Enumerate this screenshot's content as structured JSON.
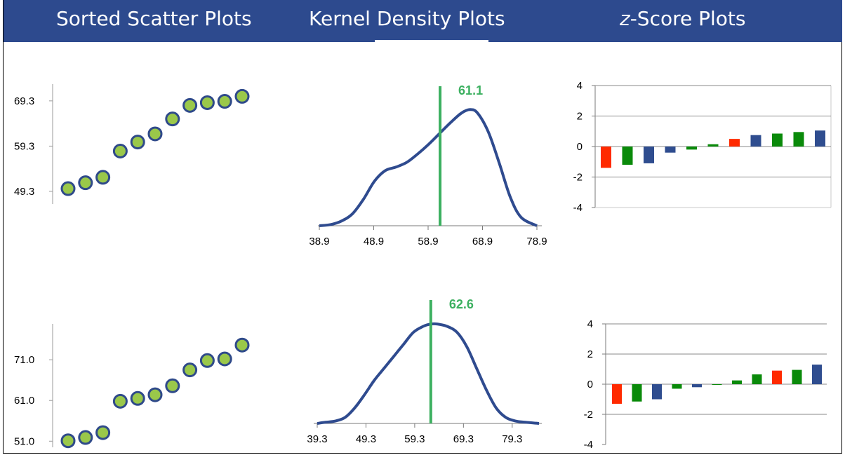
{
  "headers": {
    "scatter": "Sorted Scatter Plots",
    "kde": "Kernel Density Plots",
    "zscore_prefix": "z",
    "zscore_rest": "-Score Plots"
  },
  "colors": {
    "header_bg": "#2d4a8e",
    "dot_fill": "#9ac84a",
    "dot_stroke": "#2f4a8a",
    "kde_line": "#2f4b8f",
    "mean_line": "#3cb060",
    "bar_red": "#ff2a00",
    "bar_green": "#0a8a0a",
    "bar_blue": "#2f4d8f"
  },
  "chart_data": [
    {
      "type": "scatter",
      "panel": "sorted-scatter-top",
      "x": [
        1,
        2,
        3,
        4,
        5,
        6,
        7,
        8,
        9,
        10,
        11
      ],
      "y": [
        49.9,
        51.2,
        52.4,
        58.2,
        60.2,
        62.0,
        65.3,
        68.3,
        68.9,
        69.2,
        70.3
      ],
      "ytick_labels": [
        "49.3",
        "59.3",
        "69.3"
      ],
      "yticks": [
        49.3,
        59.3,
        69.3
      ],
      "ylim": [
        46.5,
        73.0
      ]
    },
    {
      "type": "line",
      "panel": "kde-top",
      "x": [
        38.9,
        41,
        43,
        45,
        47,
        49,
        51,
        53,
        55,
        57,
        59,
        61,
        63,
        65,
        66.6,
        68,
        70,
        72,
        74,
        76,
        78.9
      ],
      "y": [
        0.0,
        0.01,
        0.04,
        0.1,
        0.22,
        0.37,
        0.46,
        0.49,
        0.53,
        0.6,
        0.68,
        0.77,
        0.86,
        0.94,
        0.97,
        0.94,
        0.78,
        0.52,
        0.24,
        0.07,
        0.0
      ],
      "xtick_labels": [
        "38.9",
        "48.9",
        "58.9",
        "68.9",
        "78.9"
      ],
      "xticks": [
        38.9,
        48.9,
        58.9,
        68.9,
        78.9
      ],
      "xlim": [
        38.9,
        78.9
      ],
      "ylim": [
        0,
        1.2
      ],
      "mean": 61.1,
      "mean_label": "61.1"
    },
    {
      "type": "bar",
      "panel": "zscore-top",
      "values": [
        -1.4,
        -1.2,
        -1.1,
        -0.4,
        -0.2,
        0.15,
        0.5,
        0.75,
        0.85,
        0.95,
        1.05
      ],
      "bar_colors": [
        "red",
        "green",
        "blue",
        "blue",
        "green",
        "green",
        "red",
        "blue",
        "green",
        "green",
        "blue"
      ],
      "ytick_labels": [
        "4",
        "2",
        "0",
        "-2",
        "-4"
      ],
      "yticks": [
        4,
        2,
        0,
        -2,
        -4
      ],
      "ylim": [
        -4,
        4
      ],
      "grid": true
    },
    {
      "type": "scatter",
      "panel": "sorted-scatter-bottom",
      "x": [
        1,
        2,
        3,
        4,
        5,
        6,
        7,
        8,
        9,
        10,
        11
      ],
      "y": [
        51.1,
        51.9,
        53.1,
        60.8,
        61.5,
        62.4,
        64.6,
        68.5,
        70.8,
        71.2,
        74.6
      ],
      "ytick_labels": [
        "51.0",
        "61.0",
        "71.0"
      ],
      "yticks": [
        51.0,
        61.0,
        71.0
      ],
      "ylim": [
        49.5,
        79.8
      ]
    },
    {
      "type": "line",
      "panel": "kde-bottom",
      "x": [
        39.3,
        41,
        43,
        45,
        47,
        49,
        51,
        53,
        55,
        57,
        59,
        61,
        62.6,
        64,
        66,
        68,
        70,
        72,
        74,
        76,
        78,
        80,
        82,
        84.8
      ],
      "y": [
        0.0,
        0.01,
        0.02,
        0.05,
        0.13,
        0.24,
        0.36,
        0.46,
        0.56,
        0.66,
        0.76,
        0.81,
        0.83,
        0.83,
        0.81,
        0.76,
        0.64,
        0.46,
        0.28,
        0.13,
        0.05,
        0.02,
        0.01,
        0.0
      ],
      "xtick_labels": [
        "39.3",
        "49.3",
        "59.3",
        "69.3",
        "79.3"
      ],
      "xticks": [
        39.3,
        49.3,
        59.3,
        69.3,
        79.3
      ],
      "xlim": [
        39.3,
        84.8
      ],
      "ylim": [
        0,
        1.2
      ],
      "mean": 62.6,
      "mean_label": "62.6"
    },
    {
      "type": "bar",
      "panel": "zscore-bottom",
      "values": [
        -1.3,
        -1.15,
        -1.0,
        -0.3,
        -0.2,
        -0.05,
        0.25,
        0.65,
        0.9,
        0.95,
        1.3
      ],
      "bar_colors": [
        "red",
        "green",
        "blue",
        "green",
        "blue",
        "green",
        "green",
        "green",
        "red",
        "green",
        "blue"
      ],
      "ytick_labels": [
        "4",
        "2",
        "0",
        "-2",
        "-4"
      ],
      "yticks": [
        4,
        2,
        0,
        -2,
        -4
      ],
      "ylim": [
        -4,
        4
      ],
      "grid": true
    }
  ]
}
